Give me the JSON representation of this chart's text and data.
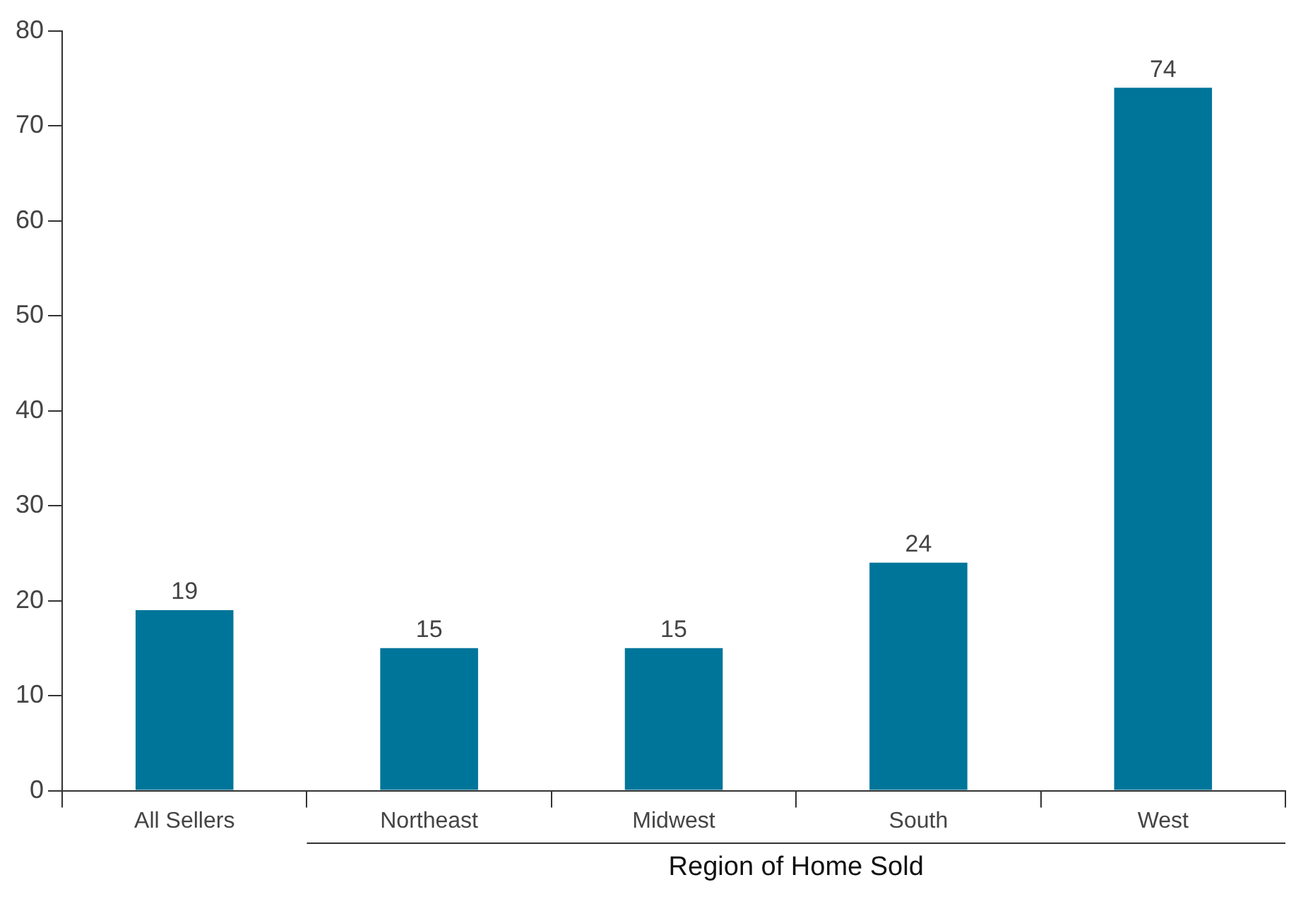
{
  "chart_data": {
    "type": "bar",
    "xlabel": "Region of Home Sold",
    "categories": [
      "All Sellers",
      "Northeast",
      "Midwest",
      "South",
      "West"
    ],
    "values": [
      19,
      15,
      15,
      24,
      74
    ],
    "color": "#00759a",
    "ylim": [
      0,
      80
    ],
    "yticks": [
      0,
      10,
      20,
      30,
      40,
      50,
      60,
      70,
      80
    ],
    "grid": false,
    "legend": false,
    "data_labels": true
  }
}
